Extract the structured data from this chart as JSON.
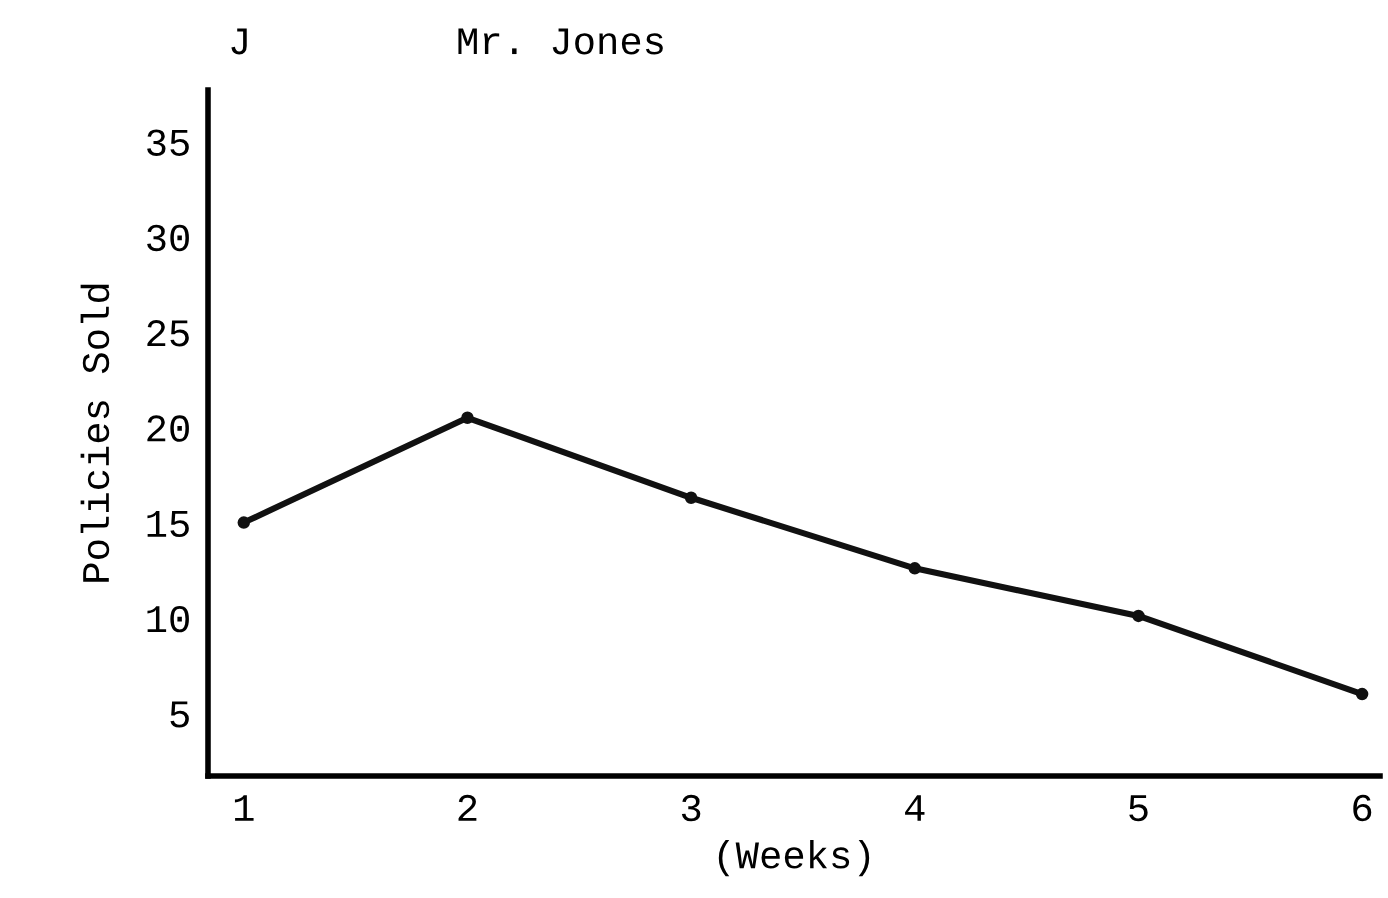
{
  "chart_data": {
    "type": "line",
    "title": "Mr. Jones",
    "annotations": [
      "J"
    ],
    "xlabel": "(Weeks)",
    "ylabel": "Policies Sold",
    "x": [
      1,
      2,
      3,
      4,
      5,
      6
    ],
    "series": [
      {
        "color": "#111111",
        "values": [
          15,
          20.5,
          16.3,
          12.6,
          10.1,
          6
        ]
      }
    ],
    "xlim": [
      0.84,
      6.08
    ],
    "xticks": [
      1,
      2,
      3,
      4,
      5,
      6
    ],
    "ylim": [
      1.7,
      37.7
    ],
    "yticks": [
      5,
      10,
      15,
      20,
      25,
      30,
      35
    ],
    "grid": false,
    "marker": "circle",
    "line_style": "solid"
  }
}
